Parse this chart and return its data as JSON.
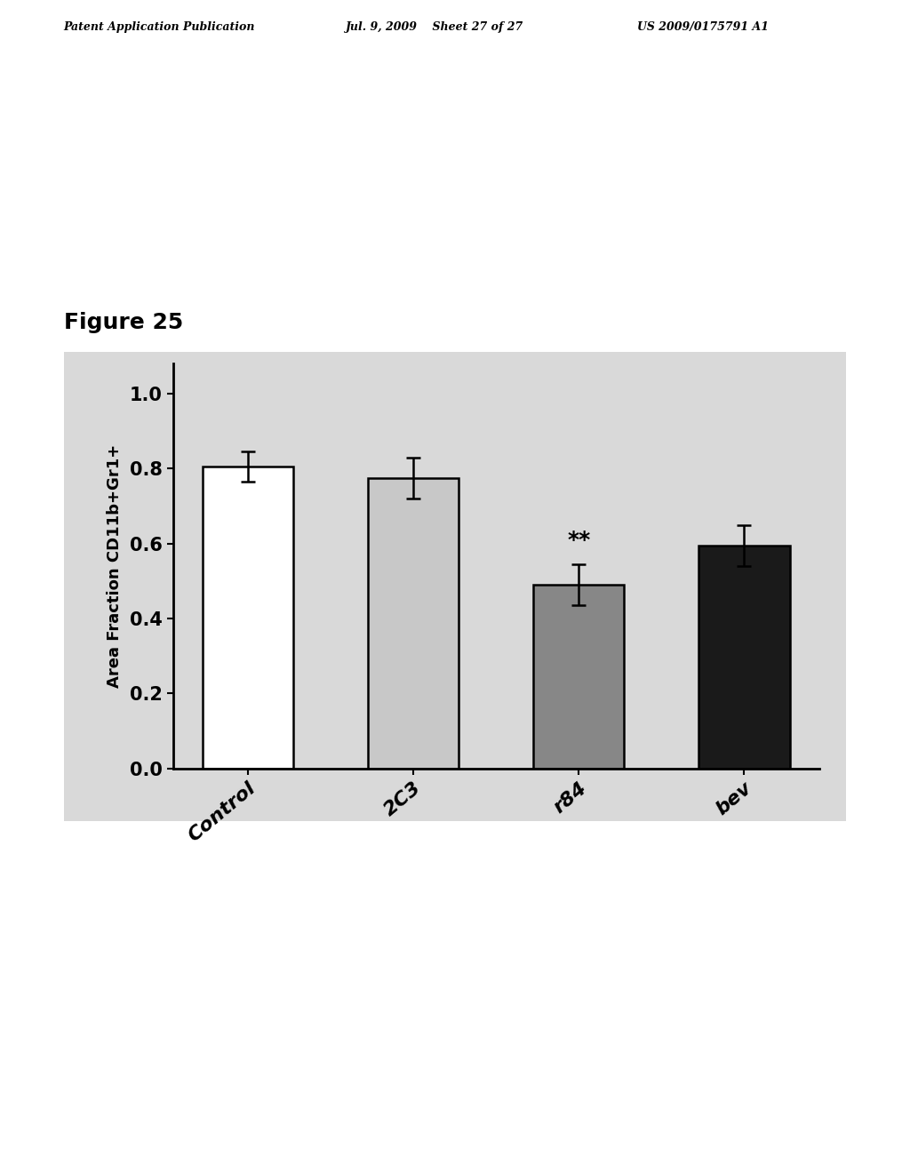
{
  "categories": [
    "Control",
    "2C3",
    "r84",
    "bev"
  ],
  "values": [
    0.805,
    0.775,
    0.49,
    0.595
  ],
  "errors": [
    0.04,
    0.055,
    0.055,
    0.055
  ],
  "bar_colors": [
    "#ffffff",
    "#c8c8c8",
    "#878787",
    "#1a1a1a"
  ],
  "bar_edge_colors": [
    "#000000",
    "#000000",
    "#000000",
    "#000000"
  ],
  "ylabel": "Area Fraction CD11b+Gr1+",
  "ylim": [
    0.0,
    1.08
  ],
  "yticks": [
    0.0,
    0.2,
    0.4,
    0.6,
    0.8,
    1.0
  ],
  "figure_label": "Figure 25",
  "significance": {
    "bar_index": 2,
    "label": "**"
  },
  "plot_bg_color": "#d9d9d9",
  "outer_bg_color": "#d9d9d9",
  "header_left": "Patent Application Publication",
  "header_center": "Jul. 9, 2009    Sheet 27 of 27",
  "header_right": "US 2009/0175791 A1"
}
